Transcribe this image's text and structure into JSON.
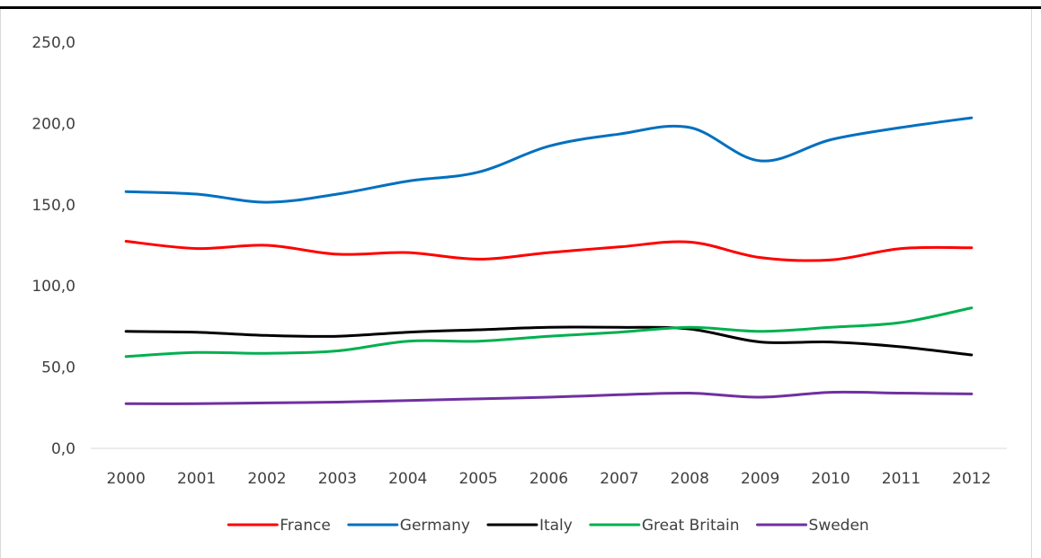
{
  "chart_data": {
    "type": "line",
    "x": [
      "2000",
      "2001",
      "2002",
      "2003",
      "2004",
      "2005",
      "2006",
      "2007",
      "2008",
      "2009",
      "2010",
      "2011",
      "2012"
    ],
    "y_ticks": [
      "0,0",
      "50,0",
      "100,0",
      "150,0",
      "200,0",
      "250,0"
    ],
    "ylim": [
      0,
      250
    ],
    "grid": false,
    "legend_position": "bottom",
    "series": [
      {
        "name": "France",
        "color": "#ff0000",
        "values": [
          127.5,
          123.0,
          125.0,
          119.5,
          120.5,
          116.5,
          120.5,
          124.0,
          127.0,
          117.5,
          116.0,
          123.0,
          123.5
        ]
      },
      {
        "name": "Germany",
        "color": "#0070c0",
        "values": [
          158.0,
          156.5,
          151.5,
          156.5,
          164.5,
          170.0,
          186.0,
          193.5,
          197.5,
          177.0,
          190.0,
          197.5,
          203.5
        ]
      },
      {
        "name": "Italy",
        "color": "#000000",
        "values": [
          72.0,
          71.5,
          69.5,
          69.0,
          71.5,
          73.0,
          74.5,
          74.5,
          73.5,
          65.5,
          65.5,
          62.5,
          57.5
        ]
      },
      {
        "name": "Great Britain",
        "color": "#00b050",
        "values": [
          56.5,
          59.0,
          58.5,
          60.0,
          66.0,
          66.0,
          69.0,
          71.5,
          74.5,
          72.0,
          74.5,
          77.5,
          86.5
        ]
      },
      {
        "name": "Sweden",
        "color": "#7030a0",
        "values": [
          27.5,
          27.5,
          28.0,
          28.5,
          29.5,
          30.5,
          31.5,
          33.0,
          34.0,
          31.5,
          34.5,
          34.0,
          33.5
        ]
      }
    ]
  }
}
